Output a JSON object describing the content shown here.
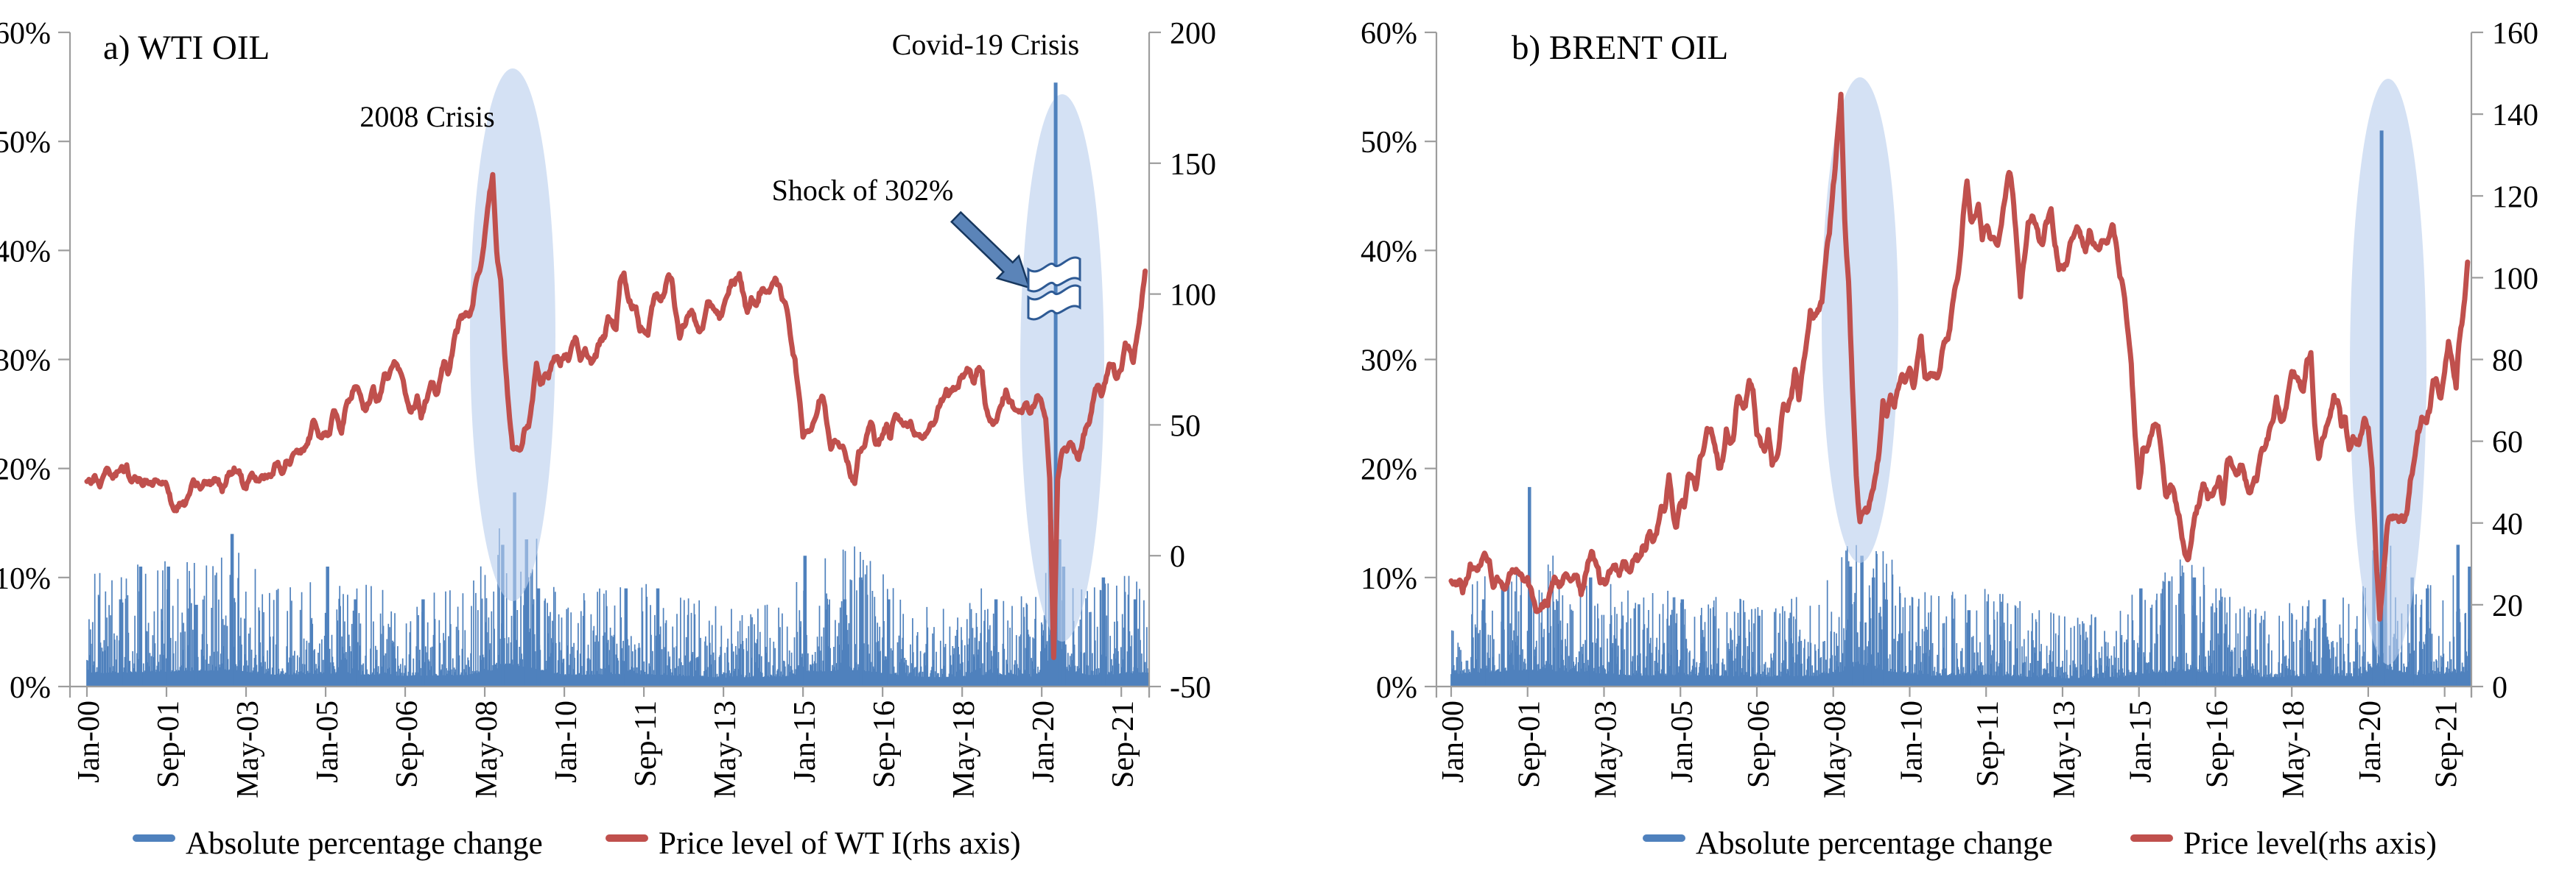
{
  "figure": {
    "colors": {
      "bar": "#4f81bd",
      "line": "#c0504d",
      "highlight": "rgba(186,207,238,0.62)",
      "axis": "#9d9d9d",
      "text": "#000000",
      "arrow_fill": "#5b84b8",
      "arrow_stroke": "#17375e"
    }
  },
  "chart_data": [
    {
      "panel": "a",
      "type": "bar+line",
      "title": "a) WTI OIL",
      "x_tick_labels": [
        "Jan-00",
        "Sep-01",
        "May-03",
        "Jan-05",
        "Sep-06",
        "May-08",
        "Jan-10",
        "Sep-11",
        "May-13",
        "Jan-15",
        "Sep-16",
        "May-18",
        "Jan-20",
        "Sep-21"
      ],
      "left_axis": {
        "unit": "%",
        "range": [
          0,
          60
        ],
        "tick_labels": [
          "60%",
          "50%",
          "40%",
          "30%",
          "20%",
          "10%",
          "0%"
        ]
      },
      "right_axis": {
        "range": [
          -50,
          200
        ],
        "tick_values": [
          200,
          150,
          100,
          50,
          0,
          -50
        ]
      },
      "series": [
        {
          "name": "Absolute percentage change",
          "type": "bar",
          "axis": "left",
          "unit": "% daily absolute change",
          "clip_display_pct": 55.4,
          "notable_spikes": [
            {
              "month": 8,
              "value_pct": 8
            },
            {
              "month": 13,
              "value_pct": 11
            },
            {
              "month": 20,
              "value_pct": 11
            },
            {
              "month": 27,
              "value_pct": 7.5
            },
            {
              "month": 36,
              "value_pct": 14
            },
            {
              "month": 60,
              "value_pct": 11
            },
            {
              "month": 67,
              "value_pct": 8
            },
            {
              "month": 84,
              "value_pct": 8
            },
            {
              "month": 104,
              "value_pct": 13
            },
            {
              "month": 107,
              "value_pct": 17.8
            },
            {
              "month": 110,
              "value_pct": 13.5
            },
            {
              "month": 113,
              "value_pct": 9
            },
            {
              "month": 135,
              "value_pct": 9
            },
            {
              "month": 143,
              "value_pct": 9
            },
            {
              "month": 180,
              "value_pct": 12
            },
            {
              "month": 190,
              "value_pct": 8
            },
            {
              "month": 194,
              "value_pct": 10
            },
            {
              "month": 201,
              "value_pct": 8
            },
            {
              "month": 228,
              "value_pct": 8
            },
            {
              "month": 242,
              "value_pct": 15.3
            },
            {
              "month": 243,
              "value_pct": 302,
              "clipped": true
            },
            {
              "month": 244,
              "value_pct": 13.5
            },
            {
              "month": 245,
              "value_pct": 11
            },
            {
              "month": 255,
              "value_pct": 10
            },
            {
              "month": 263,
              "value_pct": 8
            }
          ],
          "volatility_envelope": [
            [
              0,
              8
            ],
            [
              20,
              9
            ],
            [
              36,
              10
            ],
            [
              48,
              7
            ],
            [
              60,
              8
            ],
            [
              80,
              6.5
            ],
            [
              96,
              7
            ],
            [
              102,
              10
            ],
            [
              106,
              14
            ],
            [
              112,
              11
            ],
            [
              120,
              7
            ],
            [
              140,
              7.5
            ],
            [
              160,
              5.5
            ],
            [
              175,
              6
            ],
            [
              182,
              9
            ],
            [
              194,
              10
            ],
            [
              205,
              6.5
            ],
            [
              215,
              5.5
            ],
            [
              228,
              7.5
            ],
            [
              238,
              6
            ],
            [
              242,
              13
            ],
            [
              246,
              10
            ],
            [
              252,
              7
            ],
            [
              258,
              7.5
            ],
            [
              266,
              8.5
            ]
          ]
        },
        {
          "name": "Price level of WT I(rhs axis)",
          "type": "line",
          "axis": "right",
          "unit": "USD per barrel",
          "start": "Jan-00",
          "monthly_values": [
            27,
            29,
            30,
            26,
            29,
            32,
            30,
            31,
            33,
            33,
            34,
            28,
            29,
            30,
            27,
            28,
            28,
            27,
            26,
            27,
            26,
            22,
            19,
            19,
            19,
            21,
            24,
            26,
            27,
            25,
            27,
            28,
            29,
            28,
            26,
            29,
            33,
            35,
            33,
            28,
            28,
            30,
            30,
            31,
            28,
            30,
            31,
            32,
            34,
            34,
            36,
            36,
            40,
            38,
            40,
            44,
            45,
            53,
            48,
            43,
            46,
            48,
            54,
            53,
            50,
            56,
            59,
            65,
            65,
            62,
            58,
            59,
            65,
            61,
            62,
            69,
            70,
            71,
            74,
            73,
            63,
            58,
            59,
            62,
            54,
            59,
            60,
            64,
            63,
            67,
            74,
            72,
            79,
            85,
            94,
            91,
            92,
            95,
            105,
            112,
            125,
            133,
            145,
            116,
            104,
            76,
            57,
            41,
            41,
            39,
            48,
            50,
            59,
            70,
            64,
            71,
            69,
            75,
            78,
            74,
            78,
            76,
            81,
            84,
            74,
            75,
            76,
            75,
            75,
            81,
            84,
            89,
            89,
            89,
            103,
            110,
            101,
            95,
            96,
            86,
            86,
            86,
            97,
            99,
            100,
            102,
            106,
            104,
            94,
            82,
            88,
            94,
            92,
            89,
            86,
            88,
            95,
            95,
            93,
            92,
            95,
            96,
            104,
            106,
            106,
            100,
            94,
            98,
            95,
            101,
            101,
            102,
            102,
            106,
            103,
            97,
            93,
            84,
            76,
            59,
            47,
            50,
            48,
            54,
            59,
            60,
            51,
            43,
            45,
            46,
            42,
            37,
            32,
            30,
            38,
            41,
            46,
            49,
            45,
            45,
            45,
            50,
            45,
            52,
            53,
            53,
            50,
            51,
            48,
            46,
            47,
            47,
            50,
            52,
            57,
            58,
            64,
            62,
            63,
            66,
            70,
            68,
            71,
            68,
            70,
            72,
            57,
            49,
            52,
            55,
            58,
            64,
            60,
            55,
            57,
            55,
            56,
            54,
            57,
            60,
            58,
            50,
            30,
            -37,
            29,
            38,
            41,
            42,
            40,
            39,
            42,
            47,
            52,
            59,
            62,
            62,
            65,
            72,
            74,
            68,
            72,
            81,
            79,
            72,
            84,
            95,
            108
          ]
        }
      ],
      "annotations": [
        {
          "text": "2008 Crisis"
        },
        {
          "text": "Covid-19 Crisis"
        },
        {
          "text": "Shock of 302%"
        }
      ],
      "highlighted_periods": [
        {
          "label": "2008 Crisis",
          "center_month": 107
        },
        {
          "label": "Covid-19 Crisis",
          "center_month": 244
        }
      ]
    },
    {
      "panel": "b",
      "type": "bar+line",
      "title": "b) BRENT OIL",
      "x_tick_labels": [
        "Jan-00",
        "Sep-01",
        "May-03",
        "Jan-05",
        "Sep-06",
        "May-08",
        "Jan-10",
        "Sep-11",
        "May-13",
        "Jan-15",
        "Sep-16",
        "May-18",
        "Jan-20",
        "Sep-21"
      ],
      "left_axis": {
        "unit": "%",
        "range": [
          0,
          60
        ],
        "tick_labels": [
          "60%",
          "50%",
          "40%",
          "30%",
          "20%",
          "10%",
          "0%"
        ]
      },
      "right_axis": {
        "range": [
          0,
          160
        ],
        "tick_values": [
          160,
          140,
          120,
          100,
          80,
          60,
          40,
          20,
          0
        ]
      },
      "series": [
        {
          "name": "Absolute percentage change",
          "type": "bar",
          "axis": "left",
          "unit": "% daily absolute change",
          "clip_display_pct": 55.4,
          "notable_spikes": [
            {
              "month": 8,
              "value_pct": 8
            },
            {
              "month": 13,
              "value_pct": 9
            },
            {
              "month": 20,
              "value_pct": 18.3
            },
            {
              "month": 36,
              "value_pct": 10
            },
            {
              "month": 60,
              "value_pct": 8
            },
            {
              "month": 80,
              "value_pct": 6.5
            },
            {
              "month": 104,
              "value_pct": 11
            },
            {
              "month": 107,
              "value_pct": 12
            },
            {
              "month": 110,
              "value_pct": 10
            },
            {
              "month": 113,
              "value_pct": 8
            },
            {
              "month": 135,
              "value_pct": 7
            },
            {
              "month": 180,
              "value_pct": 9
            },
            {
              "month": 186,
              "value_pct": 7
            },
            {
              "month": 194,
              "value_pct": 10
            },
            {
              "month": 201,
              "value_pct": 7
            },
            {
              "month": 228,
              "value_pct": 8
            },
            {
              "month": 241,
              "value_pct": 12.5
            },
            {
              "month": 243,
              "value_pct": 51
            },
            {
              "month": 244,
              "value_pct": 11
            },
            {
              "month": 251,
              "value_pct": 10
            },
            {
              "month": 255,
              "value_pct": 9
            },
            {
              "month": 263,
              "value_pct": 13
            },
            {
              "month": 266,
              "value_pct": 11
            }
          ],
          "volatility_envelope": [
            [
              0,
              7.5
            ],
            [
              20,
              10
            ],
            [
              36,
              8.5
            ],
            [
              48,
              6.5
            ],
            [
              60,
              7
            ],
            [
              80,
              6
            ],
            [
              96,
              6.5
            ],
            [
              102,
              9
            ],
            [
              106,
              12
            ],
            [
              112,
              10
            ],
            [
              125,
              6.5
            ],
            [
              140,
              7
            ],
            [
              160,
              5
            ],
            [
              175,
              5.5
            ],
            [
              182,
              8
            ],
            [
              194,
              9.5
            ],
            [
              205,
              6
            ],
            [
              215,
              5.5
            ],
            [
              228,
              7
            ],
            [
              238,
              6
            ],
            [
              242,
              13
            ],
            [
              246,
              10
            ],
            [
              252,
              7
            ],
            [
              258,
              7.5
            ],
            [
              266,
              9
            ]
          ]
        },
        {
          "name": "Price level(rhs axis)",
          "type": "line",
          "axis": "right",
          "unit": "USD per barrel",
          "start": "Jan-00",
          "monthly_values": [
            25,
            27,
            27,
            23,
            27,
            30,
            28,
            30,
            32,
            31,
            32,
            26,
            26,
            27,
            25,
            26,
            28,
            28,
            25,
            26,
            26,
            21,
            19,
            19,
            19,
            20,
            24,
            26,
            25,
            24,
            26,
            27,
            28,
            27,
            24,
            28,
            31,
            33,
            31,
            25,
            26,
            27,
            28,
            30,
            27,
            30,
            29,
            30,
            31,
            31,
            34,
            33,
            38,
            35,
            38,
            43,
            43,
            50,
            43,
            40,
            44,
            45,
            53,
            52,
            49,
            54,
            57,
            64,
            63,
            59,
            55,
            57,
            63,
            60,
            62,
            70,
            70,
            69,
            74,
            74,
            63,
            58,
            59,
            63,
            54,
            58,
            62,
            68,
            67,
            71,
            77,
            71,
            77,
            83,
            93,
            91,
            92,
            95,
            104,
            109,
            123,
            133,
            144,
            113,
            98,
            72,
            53,
            40,
            43,
            43,
            47,
            50,
            58,
            69,
            65,
            72,
            68,
            73,
            77,
            75,
            76,
            74,
            79,
            85,
            76,
            75,
            76,
            77,
            78,
            83,
            85,
            92,
            97,
            104,
            115,
            123,
            115,
            114,
            117,
            110,
            113,
            109,
            111,
            108,
            111,
            119,
            125,
            120,
            110,
            95,
            103,
            113,
            113,
            112,
            109,
            109,
            113,
            116,
            109,
            102,
            103,
            103,
            107,
            111,
            112,
            109,
            108,
            111,
            108,
            109,
            108,
            108,
            110,
            112,
            107,
            102,
            97,
            87,
            79,
            62,
            48,
            58,
            56,
            60,
            64,
            62,
            56,
            47,
            48,
            48,
            44,
            38,
            31,
            33,
            39,
            42,
            47,
            49,
            45,
            46,
            47,
            50,
            45,
            54,
            55,
            55,
            52,
            53,
            51,
            47,
            49,
            52,
            56,
            57,
            62,
            64,
            69,
            65,
            66,
            71,
            77,
            74,
            74,
            72,
            79,
            81,
            65,
            57,
            60,
            64,
            66,
            71,
            70,
            63,
            64,
            59,
            62,
            59,
            62,
            66,
            63,
            55,
            33,
            16,
            29,
            40,
            43,
            44,
            41,
            40,
            43,
            50,
            55,
            62,
            65,
            65,
            68,
            74,
            75,
            71,
            74,
            84,
            81,
            74,
            86,
            94,
            103
          ]
        }
      ],
      "annotations": [],
      "highlighted_periods": [
        {
          "label": "2008 Crisis",
          "center_month": 107
        },
        {
          "label": "Covid-19 Crisis",
          "center_month": 244
        }
      ]
    }
  ]
}
